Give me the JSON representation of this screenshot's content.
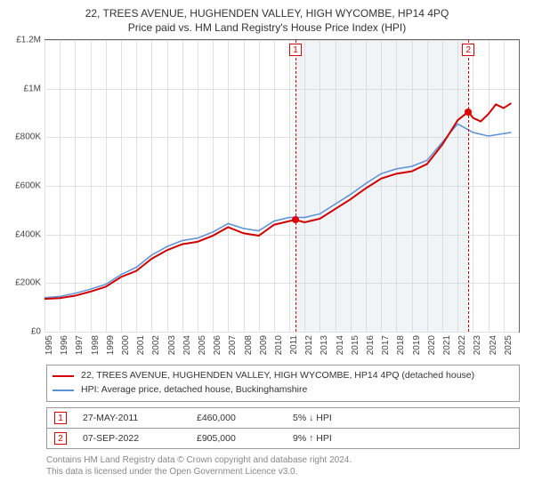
{
  "title": "22, TREES AVENUE, HUGHENDEN VALLEY, HIGH WYCOMBE, HP14 4PQ",
  "subtitle": "Price paid vs. HM Land Registry's House Price Index (HPI)",
  "chart": {
    "type": "line",
    "xlim": [
      1995,
      2026
    ],
    "ylim": [
      0,
      1200000
    ],
    "yticks": [
      0,
      200000,
      400000,
      600000,
      800000,
      1000000,
      1200000
    ],
    "ytick_labels": [
      "£0",
      "£200K",
      "£400K",
      "£600K",
      "£800K",
      "£1M",
      "£1.2M"
    ],
    "xticks": [
      1995,
      1996,
      1997,
      1998,
      1999,
      2000,
      2001,
      2002,
      2003,
      2004,
      2005,
      2006,
      2007,
      2008,
      2009,
      2010,
      2011,
      2012,
      2013,
      2014,
      2015,
      2016,
      2017,
      2018,
      2019,
      2020,
      2021,
      2022,
      2023,
      2024,
      2025
    ],
    "grid_color": "#e0e0e0",
    "background_color": "#ffffff",
    "band_color": "rgba(200,210,220,0.25)",
    "band_start": 2011.4,
    "band_end": 2022.7,
    "series": [
      {
        "name": "subject",
        "label": "22, TREES AVENUE, HUGHENDEN VALLEY, HIGH WYCOMBE, HP14 4PQ (detached house)",
        "color": "#d00000",
        "width": 2,
        "points": [
          [
            1995,
            135000
          ],
          [
            1996,
            138000
          ],
          [
            1997,
            148000
          ],
          [
            1998,
            165000
          ],
          [
            1999,
            185000
          ],
          [
            2000,
            225000
          ],
          [
            2001,
            250000
          ],
          [
            2002,
            300000
          ],
          [
            2003,
            335000
          ],
          [
            2004,
            360000
          ],
          [
            2005,
            370000
          ],
          [
            2006,
            395000
          ],
          [
            2007,
            430000
          ],
          [
            2008,
            405000
          ],
          [
            2009,
            395000
          ],
          [
            2010,
            440000
          ],
          [
            2011,
            455000
          ],
          [
            2011.4,
            460000
          ],
          [
            2012,
            450000
          ],
          [
            2013,
            465000
          ],
          [
            2014,
            505000
          ],
          [
            2015,
            545000
          ],
          [
            2016,
            590000
          ],
          [
            2017,
            630000
          ],
          [
            2018,
            650000
          ],
          [
            2019,
            660000
          ],
          [
            2020,
            690000
          ],
          [
            2021,
            770000
          ],
          [
            2022,
            870000
          ],
          [
            2022.7,
            905000
          ],
          [
            2023,
            880000
          ],
          [
            2023.5,
            865000
          ],
          [
            2024,
            895000
          ],
          [
            2024.5,
            935000
          ],
          [
            2025,
            920000
          ],
          [
            2025.5,
            940000
          ]
        ]
      },
      {
        "name": "hpi",
        "label": "HPI: Average price, detached house, Buckinghamshire",
        "color": "#5b8fd6",
        "width": 1.5,
        "points": [
          [
            1995,
            140000
          ],
          [
            1996,
            145000
          ],
          [
            1997,
            158000
          ],
          [
            1998,
            175000
          ],
          [
            1999,
            195000
          ],
          [
            2000,
            235000
          ],
          [
            2001,
            265000
          ],
          [
            2002,
            315000
          ],
          [
            2003,
            350000
          ],
          [
            2004,
            375000
          ],
          [
            2005,
            385000
          ],
          [
            2006,
            410000
          ],
          [
            2007,
            445000
          ],
          [
            2008,
            425000
          ],
          [
            2009,
            415000
          ],
          [
            2010,
            455000
          ],
          [
            2011,
            470000
          ],
          [
            2012,
            470000
          ],
          [
            2013,
            485000
          ],
          [
            2014,
            525000
          ],
          [
            2015,
            565000
          ],
          [
            2016,
            610000
          ],
          [
            2017,
            650000
          ],
          [
            2018,
            670000
          ],
          [
            2019,
            680000
          ],
          [
            2020,
            705000
          ],
          [
            2021,
            780000
          ],
          [
            2022,
            855000
          ],
          [
            2023,
            820000
          ],
          [
            2024,
            805000
          ],
          [
            2025,
            815000
          ],
          [
            2025.5,
            820000
          ]
        ]
      }
    ],
    "markers": [
      {
        "id": "1",
        "x": 2011.4,
        "y": 460000
      },
      {
        "id": "2",
        "x": 2022.7,
        "y": 905000
      }
    ]
  },
  "legend": {
    "items": [
      {
        "color": "#d00000",
        "label": "22, TREES AVENUE, HUGHENDEN VALLEY, HIGH WYCOMBE, HP14 4PQ (detached house)"
      },
      {
        "color": "#5b8fd6",
        "label": "HPI: Average price, detached house, Buckinghamshire"
      }
    ]
  },
  "sales": [
    {
      "id": "1",
      "date": "27-MAY-2011",
      "price": "£460,000",
      "delta": "5% ↓ HPI"
    },
    {
      "id": "2",
      "date": "07-SEP-2022",
      "price": "£905,000",
      "delta": "9% ↑ HPI"
    }
  ],
  "footer": {
    "line1": "Contains HM Land Registry data © Crown copyright and database right 2024.",
    "line2": "This data is licensed under the Open Government Licence v3.0."
  }
}
